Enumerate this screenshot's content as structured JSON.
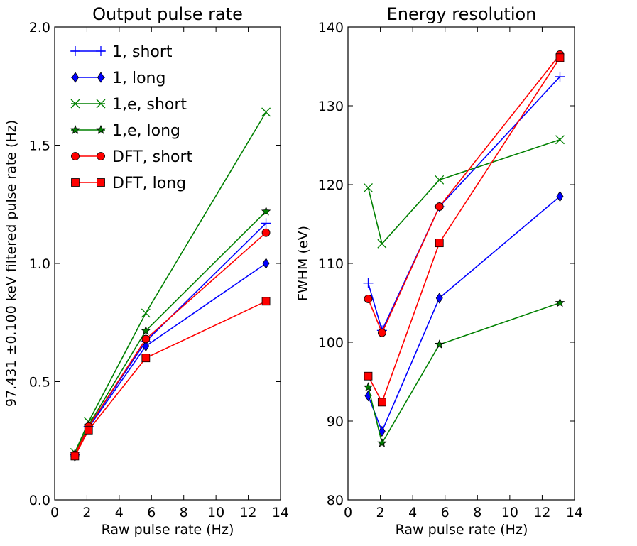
{
  "colors": {
    "blue": "#0000ff",
    "green": "#008000",
    "red": "#ff0000",
    "dark_green": "#006400"
  },
  "chart_data": [
    {
      "type": "line",
      "title": "Output pulse rate",
      "xlabel": "Raw pulse rate (Hz)",
      "ylabel": "97.431 ±0.100 keV  filtered pulse rate (Hz)",
      "xlim": [
        0,
        14
      ],
      "ylim": [
        0.0,
        2.0
      ],
      "xticks": [
        "0",
        "2",
        "4",
        "6",
        "8",
        "10",
        "12",
        "14"
      ],
      "yticks": [
        "0.0",
        "0.5",
        "1.0",
        "1.5",
        "2.0"
      ],
      "x": [
        1.25,
        2.1,
        5.65,
        13.1
      ],
      "legend": "top-left",
      "series": [
        {
          "name": "1, short",
          "color": "#0000ff",
          "marker": "plus",
          "values": [
            0.19,
            0.31,
            0.67,
            1.17
          ]
        },
        {
          "name": "1, long",
          "color": "#0000ff",
          "marker": "diamond",
          "values": [
            0.185,
            0.305,
            0.65,
            1.0
          ]
        },
        {
          "name": "1,e, short",
          "color": "#008000",
          "marker": "x",
          "values": [
            0.2,
            0.33,
            0.79,
            1.64
          ]
        },
        {
          "name": "1,e, long",
          "color": "#008000",
          "marker": "star",
          "values": [
            0.195,
            0.315,
            0.715,
            1.22
          ]
        },
        {
          "name": "DFT, short",
          "color": "#ff0000",
          "marker": "circle",
          "values": [
            0.19,
            0.31,
            0.68,
            1.13
          ]
        },
        {
          "name": "DFT, long",
          "color": "#ff0000",
          "marker": "square",
          "values": [
            0.185,
            0.295,
            0.6,
            0.84
          ]
        }
      ]
    },
    {
      "type": "line",
      "title": "Energy resolution",
      "xlabel": "Raw pulse rate (Hz)",
      "ylabel": "FWHM (eV)",
      "xlim": [
        0,
        14
      ],
      "ylim": [
        80,
        140
      ],
      "xticks": [
        "0",
        "2",
        "4",
        "6",
        "8",
        "10",
        "12",
        "14"
      ],
      "yticks": [
        "80",
        "90",
        "100",
        "110",
        "120",
        "130",
        "140"
      ],
      "x": [
        1.25,
        2.1,
        5.65,
        13.1
      ],
      "series": [
        {
          "name": "1, short",
          "color": "#0000ff",
          "marker": "plus",
          "values": [
            107.5,
            101.5,
            117.2,
            133.7
          ]
        },
        {
          "name": "1, long",
          "color": "#0000ff",
          "marker": "diamond",
          "values": [
            93.2,
            88.7,
            105.6,
            118.5
          ]
        },
        {
          "name": "1,e, short",
          "color": "#008000",
          "marker": "x",
          "values": [
            119.6,
            112.5,
            120.6,
            125.7
          ]
        },
        {
          "name": "1,e, long",
          "color": "#008000",
          "marker": "star",
          "values": [
            94.3,
            87.2,
            99.7,
            105.0
          ]
        },
        {
          "name": "DFT, short",
          "color": "#ff0000",
          "marker": "circle",
          "values": [
            105.5,
            101.2,
            117.2,
            136.5
          ]
        },
        {
          "name": "DFT, long",
          "color": "#ff0000",
          "marker": "square",
          "values": [
            95.7,
            92.4,
            112.6,
            136.1
          ]
        }
      ]
    }
  ]
}
